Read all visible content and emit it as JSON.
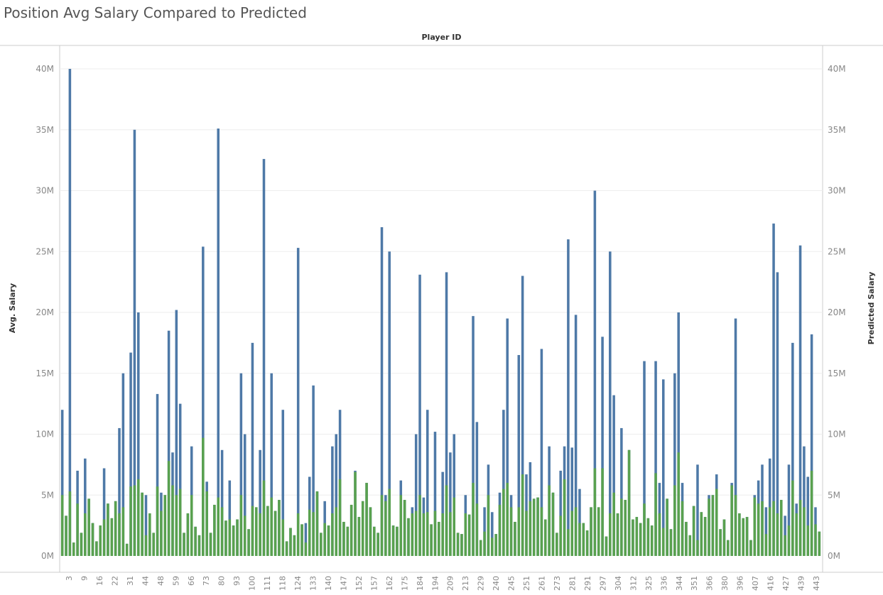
{
  "page": {
    "title": "Position Avg Salary Compared to Predicted"
  },
  "colors": {
    "series_avg": "#4e79a7",
    "series_pred": "#59a14f",
    "grid": "#ededed",
    "axis": "#cccccc"
  },
  "chart_data": {
    "type": "bar",
    "title": "Position Avg Salary Compared to Predicted",
    "xlabel": "Player ID",
    "ylabel": "Avg. Salary",
    "ylabel_right": "Predicted Salary",
    "ylim": [
      0,
      40
    ],
    "yunit": "M",
    "yticks": [
      "0M",
      "5M",
      "10M",
      "15M",
      "20M",
      "25M",
      "30M",
      "35M",
      "40M"
    ],
    "overlay": true,
    "x_tick_labels": [
      "3",
      "9",
      "16",
      "22",
      "31",
      "44",
      "48",
      "59",
      "66",
      "73",
      "80",
      "93",
      "100",
      "111",
      "118",
      "124",
      "133",
      "140",
      "147",
      "152",
      "157",
      "162",
      "175",
      "184",
      "194",
      "209",
      "213",
      "229",
      "240",
      "245",
      "251",
      "261",
      "273",
      "281",
      "291",
      "297",
      "304",
      "312",
      "325",
      "336",
      "344",
      "351",
      "366",
      "380",
      "396",
      "407",
      "416",
      "427",
      "439",
      "443"
    ],
    "series": [
      {
        "name": "Avg. Salary",
        "values": [
          12.0,
          3.3,
          40.0,
          1.1,
          7.0,
          1.9,
          8.0,
          4.7,
          2.7,
          1.2,
          2.5,
          7.2,
          4.3,
          3.1,
          4.5,
          10.5,
          15.0,
          1.0,
          16.7,
          35.0,
          20.0,
          5.2,
          5.0,
          2.1,
          1.9,
          13.3,
          5.2,
          5.0,
          18.5,
          8.5,
          20.2,
          12.5,
          1.9,
          3.5,
          9.0,
          2.4,
          1.7,
          25.4,
          6.1,
          1.9,
          4.2,
          35.1,
          8.7,
          2.9,
          6.2,
          2.5,
          3.0,
          15.0,
          10.0,
          2.2,
          17.5,
          4.0,
          8.7,
          32.6,
          4.1,
          15.0,
          3.7,
          4.6,
          12.0,
          1.2,
          2.3,
          1.7,
          25.3,
          2.6,
          2.7,
          6.5,
          14.0,
          5.3,
          1.9,
          4.5,
          2.5,
          9.0,
          10.0,
          12.0,
          2.8,
          2.4,
          4.2,
          7.0,
          3.2,
          4.5,
          6.0,
          4.0,
          2.4,
          1.9,
          27.0,
          5.0,
          25.0,
          2.5,
          2.4,
          6.2,
          4.6,
          3.1,
          4.0,
          10.0,
          23.1,
          4.8,
          12.0,
          2.6,
          10.2,
          2.8,
          6.9,
          23.3,
          8.5,
          10.0,
          1.9,
          1.8,
          5.0,
          3.4,
          19.7,
          11.0,
          1.3,
          4.0,
          7.5,
          3.6,
          1.8,
          5.2,
          12.0,
          19.5,
          5.0,
          2.8,
          16.5,
          23.0,
          6.7,
          7.7,
          4.7,
          4.8,
          17.0,
          3.0,
          9.0,
          5.2,
          1.9,
          7.0,
          9.0,
          26.0,
          8.9,
          19.8,
          5.5,
          2.7,
          2.1,
          4.0,
          30.0,
          4.0,
          18.0,
          1.6,
          25.0,
          13.2,
          3.5,
          10.5,
          4.6,
          8.7,
          3.0,
          3.2,
          2.7,
          16.0,
          3.1,
          2.5,
          16.0,
          6.0,
          14.5,
          4.7,
          2.2,
          15.0,
          20.0,
          6.0,
          2.8,
          1.7,
          4.1,
          7.5,
          3.6,
          3.2,
          5.0,
          5.0,
          6.7,
          2.2,
          3.0,
          1.3,
          6.0,
          19.5,
          3.5,
          3.1,
          3.2,
          1.3,
          5.0,
          6.2,
          7.5,
          4.0,
          8.0,
          27.3,
          23.3,
          4.6,
          3.3,
          7.5,
          17.5,
          4.3,
          25.5,
          9.0,
          6.5,
          18.2,
          4.0,
          2.0
        ]
      },
      {
        "name": "Predicted Salary",
        "values": [
          5.0,
          3.3,
          5.3,
          1.1,
          4.3,
          1.9,
          3.5,
          4.7,
          2.7,
          1.2,
          2.5,
          3.0,
          4.3,
          3.1,
          4.5,
          3.5,
          4.0,
          1.0,
          5.7,
          5.8,
          6.3,
          5.2,
          1.7,
          3.5,
          1.9,
          5.7,
          3.7,
          5.0,
          7.8,
          5.8,
          5.0,
          5.5,
          1.9,
          3.5,
          5.0,
          2.4,
          1.7,
          9.7,
          5.3,
          1.9,
          4.2,
          4.8,
          4.0,
          2.9,
          3.0,
          2.5,
          3.0,
          5.0,
          3.3,
          2.2,
          4.1,
          4.0,
          3.5,
          6.2,
          4.1,
          4.8,
          3.7,
          4.6,
          3.0,
          1.2,
          2.3,
          1.7,
          3.5,
          2.6,
          1.1,
          3.8,
          3.6,
          5.3,
          1.9,
          2.7,
          2.5,
          3.5,
          4.0,
          6.3,
          2.8,
          2.4,
          4.2,
          6.9,
          3.2,
          4.5,
          6.0,
          4.0,
          2.4,
          1.9,
          5.0,
          4.5,
          5.5,
          2.5,
          2.4,
          5.0,
          4.6,
          3.1,
          3.5,
          3.7,
          5.0,
          3.5,
          3.6,
          2.6,
          3.7,
          2.8,
          3.5,
          5.8,
          3.6,
          4.8,
          1.9,
          1.8,
          3.5,
          3.4,
          6.0,
          4.3,
          1.3,
          2.0,
          5.0,
          1.5,
          1.8,
          4.2,
          5.5,
          6.0,
          4.0,
          2.8,
          4.0,
          6.7,
          3.7,
          4.5,
          4.7,
          4.8,
          4.0,
          3.0,
          5.8,
          5.2,
          1.9,
          3.3,
          6.3,
          2.2,
          3.7,
          4.0,
          2.7,
          2.7,
          2.1,
          4.0,
          7.2,
          4.0,
          7.2,
          1.6,
          3.5,
          5.2,
          3.5,
          4.7,
          4.6,
          8.7,
          3.0,
          3.2,
          2.7,
          4.3,
          3.1,
          2.5,
          6.8,
          3.5,
          2.3,
          4.7,
          2.2,
          5.8,
          8.5,
          4.5,
          2.8,
          1.7,
          4.1,
          1.3,
          3.6,
          3.2,
          4.7,
          5.0,
          5.5,
          2.2,
          3.0,
          1.3,
          5.8,
          5.0,
          3.5,
          3.1,
          3.2,
          1.3,
          4.8,
          4.3,
          4.5,
          1.8,
          4.0,
          4.5,
          3.5,
          4.6,
          1.7,
          2.5,
          6.2,
          3.5,
          4.6,
          4.0,
          2.5,
          7.0,
          2.6,
          2.0
        ]
      }
    ]
  }
}
